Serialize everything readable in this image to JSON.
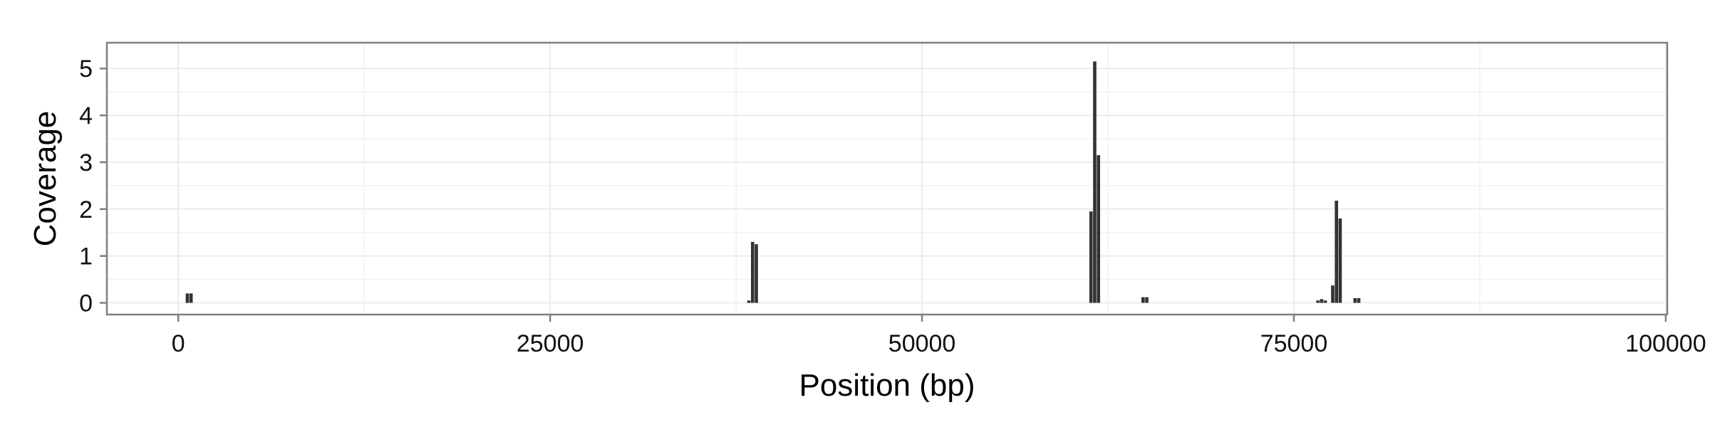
{
  "chart_data": {
    "type": "bar",
    "title": "",
    "xlabel": "Position (bp)",
    "ylabel": "Coverage",
    "xlim": [
      -4800,
      100100
    ],
    "ylim": [
      -0.25,
      5.55
    ],
    "x_ticks": [
      0,
      25000,
      50000,
      75000,
      100000
    ],
    "x_tick_labels": [
      "0",
      "25000",
      "50000",
      "75000",
      "100000"
    ],
    "y_ticks": [
      0,
      1,
      2,
      3,
      4,
      5
    ],
    "y_tick_labels": [
      "0",
      "1",
      "2",
      "3",
      "4",
      "5"
    ],
    "x_minor_ticks": [
      12500,
      37500,
      62500,
      87500
    ],
    "y_minor_ticks": [
      0.5,
      1.5,
      2.5,
      3.5,
      4.5
    ],
    "grid": true,
    "legend": "none",
    "bin_width": 250,
    "bar_color": "#333333",
    "panel_background": "#ffffff",
    "grid_color": "#ebebeb",
    "border_color": "#7f7f7f",
    "bins": [
      {
        "x": 500,
        "y": 0.2
      },
      {
        "x": 750,
        "y": 0.2
      },
      {
        "x": 38250,
        "y": 0.05
      },
      {
        "x": 38500,
        "y": 1.3
      },
      {
        "x": 38750,
        "y": 1.25
      },
      {
        "x": 61250,
        "y": 1.95
      },
      {
        "x": 61500,
        "y": 5.15
      },
      {
        "x": 61750,
        "y": 3.15
      },
      {
        "x": 64750,
        "y": 0.12
      },
      {
        "x": 65000,
        "y": 0.12
      },
      {
        "x": 76500,
        "y": 0.05
      },
      {
        "x": 76750,
        "y": 0.08
      },
      {
        "x": 77000,
        "y": 0.05
      },
      {
        "x": 77500,
        "y": 0.37
      },
      {
        "x": 77750,
        "y": 2.18
      },
      {
        "x": 78000,
        "y": 1.8
      },
      {
        "x": 79000,
        "y": 0.1
      },
      {
        "x": 79250,
        "y": 0.1
      }
    ]
  }
}
